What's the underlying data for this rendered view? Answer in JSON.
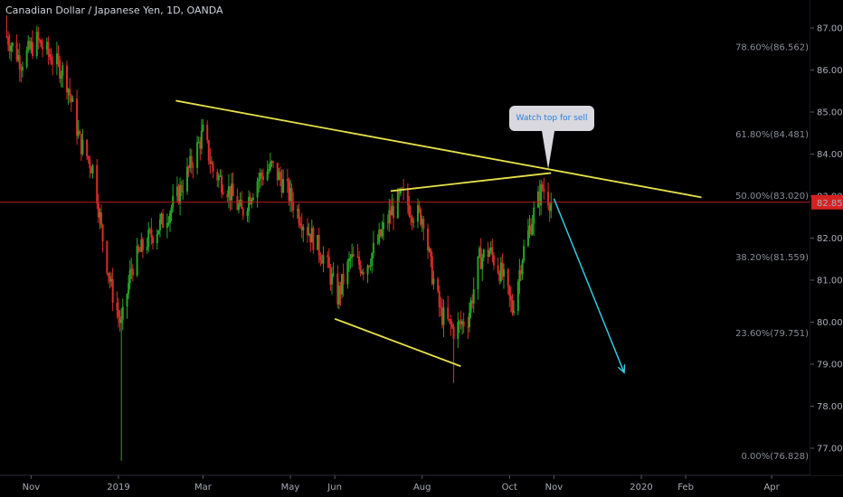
{
  "header": {
    "title": "Canadian Dollar / Japanese Yen, 1D, OANDA"
  },
  "annotation": {
    "text": "Watch top for sell"
  },
  "colors": {
    "up": "#26a626",
    "down": "#d92b2b",
    "trend": "#e6e04a",
    "arrow": "#35c8e0",
    "price_line": "#b31f1f",
    "price_tag": "#d62121"
  },
  "chart_data": {
    "type": "candlestick",
    "title": "Canadian Dollar / Japanese Yen, 1D, OANDA",
    "symbol": "CAD/JPY",
    "interval": "1D",
    "source": "OANDA",
    "ylim": [
      76.2,
      87.45
    ],
    "x_tick_labels": [
      "Nov",
      "2019",
      "Mar",
      "May",
      "Jun",
      "Aug",
      "Oct",
      "Nov",
      "2020",
      "Feb",
      "Apr"
    ],
    "x_ticks": [
      "2018-11-01",
      "2019-01-01",
      "2019-03-01",
      "2019-05-01",
      "2019-06-01",
      "2019-08-01",
      "2019-10-01",
      "2019-11-01",
      "2020-01-01",
      "2020-02-01",
      "2020-04-01"
    ],
    "y_ticks": [
      77.0,
      78.0,
      79.0,
      80.0,
      81.0,
      82.0,
      83.0,
      84.0,
      85.0,
      86.0,
      87.0
    ],
    "y_tick_labels": [
      "77.000",
      "78.000",
      "79.000",
      "80.000",
      "81.000",
      "82.000",
      "83.000",
      "84.000",
      "85.000",
      "86.000",
      "87.000"
    ],
    "last_price": 82.854,
    "last_price_label": "82.854",
    "fib_levels": [
      {
        "label": "78.60%(86.562)",
        "value": 86.562
      },
      {
        "label": "61.80%(84.481)",
        "value": 84.481
      },
      {
        "label": "50.00%(83.020)",
        "value": 83.02
      },
      {
        "label": "38.20%(81.559)",
        "value": 81.559
      },
      {
        "label": "23.60%(79.751)",
        "value": 79.751
      },
      {
        "label": "0.00%(76.828)",
        "value": 76.828
      }
    ],
    "price_path": [
      [
        "2018-10-15",
        86.8
      ],
      [
        "2018-10-25",
        86.2
      ],
      [
        "2018-11-05",
        86.7
      ],
      [
        "2018-11-15",
        86.3
      ],
      [
        "2018-11-25",
        85.9
      ],
      [
        "2018-12-05",
        84.3
      ],
      [
        "2018-12-15",
        83.6
      ],
      [
        "2018-12-20",
        82.2
      ],
      [
        "2018-12-27",
        80.8
      ],
      [
        "2019-01-03",
        79.9
      ],
      [
        "2019-01-10",
        81.3
      ],
      [
        "2019-01-20",
        81.9
      ],
      [
        "2019-02-01",
        82.4
      ],
      [
        "2019-02-10",
        82.9
      ],
      [
        "2019-02-20",
        83.7
      ],
      [
        "2019-03-01",
        84.5
      ],
      [
        "2019-03-08",
        83.6
      ],
      [
        "2019-03-18",
        83.2
      ],
      [
        "2019-03-28",
        82.6
      ],
      [
        "2019-04-08",
        83.4
      ],
      [
        "2019-04-18",
        83.7
      ],
      [
        "2019-04-26",
        83.3
      ],
      [
        "2019-05-05",
        82.7
      ],
      [
        "2019-05-15",
        82.1
      ],
      [
        "2019-05-25",
        81.5
      ],
      [
        "2019-06-03",
        80.6
      ],
      [
        "2019-06-12",
        81.5
      ],
      [
        "2019-06-22",
        81.3
      ],
      [
        "2019-07-01",
        81.9
      ],
      [
        "2019-07-10",
        82.6
      ],
      [
        "2019-07-18",
        83.0
      ],
      [
        "2019-07-26",
        82.6
      ],
      [
        "2019-08-02",
        82.5
      ],
      [
        "2019-08-07",
        81.3
      ],
      [
        "2019-08-14",
        80.2
      ],
      [
        "2019-08-23",
        79.8
      ],
      [
        "2019-09-02",
        80.1
      ],
      [
        "2019-09-10",
        81.5
      ],
      [
        "2019-09-17",
        81.7
      ],
      [
        "2019-09-26",
        81.1
      ],
      [
        "2019-10-03",
        80.3
      ],
      [
        "2019-10-10",
        81.6
      ],
      [
        "2019-10-18",
        82.6
      ],
      [
        "2019-10-24",
        83.2
      ],
      [
        "2019-10-30",
        82.85
      ]
    ],
    "spikes": [
      {
        "date": "2019-01-03",
        "low": 76.7
      },
      {
        "date": "2019-08-23",
        "low": 78.55
      },
      {
        "date": "2018-10-15",
        "high": 87.3
      }
    ],
    "trend_lines": [
      {
        "name": "upper-trendline",
        "from": [
          "2019-02-10",
          85.27
        ],
        "to": [
          "2020-02-12",
          82.97
        ]
      },
      {
        "name": "inner-resistance",
        "from": [
          "2019-07-10",
          83.12
        ],
        "to": [
          "2019-10-30",
          83.55
        ]
      },
      {
        "name": "support-line",
        "from": [
          "2019-06-01",
          80.08
        ],
        "to": [
          "2019-08-28",
          78.95
        ]
      },
      {
        "name": "projection-arrow",
        "from": [
          "2019-11-01",
          82.94
        ],
        "to": [
          "2019-12-20",
          78.8
        ]
      }
    ],
    "callout_anchor": [
      "2019-10-28",
      83.55
    ]
  }
}
